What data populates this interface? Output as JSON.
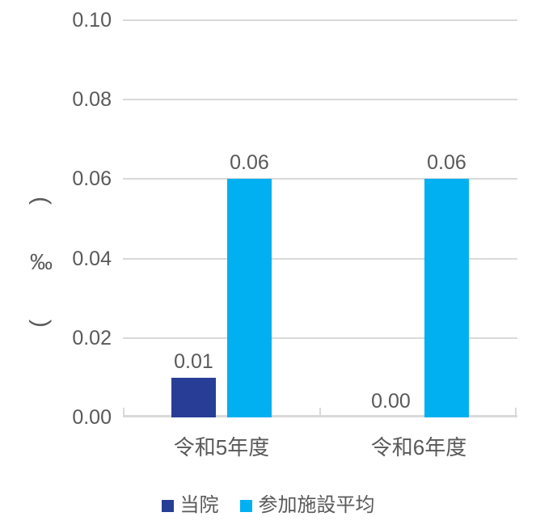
{
  "chart_data": {
    "type": "bar",
    "categories": [
      "令和5年度",
      "令和6年度"
    ],
    "series": [
      {
        "name": "当院",
        "color": "#283E96",
        "values": [
          0.01,
          0.0
        ],
        "data_labels": [
          "0.01",
          "0.00"
        ]
      },
      {
        "name": "参加施設平均",
        "color": "#00B0F0",
        "values": [
          0.06,
          0.06
        ],
        "data_labels": [
          "0.06",
          "0.06"
        ]
      }
    ],
    "ylabel": "(‰)",
    "ylabel_parts": [
      "(",
      "‰",
      ")"
    ],
    "ylim": [
      0,
      0.1
    ],
    "yticks": [
      {
        "value": 0.0,
        "label": "0.00"
      },
      {
        "value": 0.02,
        "label": "0.02"
      },
      {
        "value": 0.04,
        "label": "0.04"
      },
      {
        "value": 0.06,
        "label": "0.06"
      },
      {
        "value": 0.08,
        "label": "0.08"
      },
      {
        "value": 0.1,
        "label": "0.10"
      }
    ],
    "grid": true,
    "legend_position": "bottom",
    "colors": {
      "text": "#595959",
      "gridline": "#D9D9D9",
      "axis": "#D9D9D9",
      "background": "#FFFFFF"
    }
  }
}
